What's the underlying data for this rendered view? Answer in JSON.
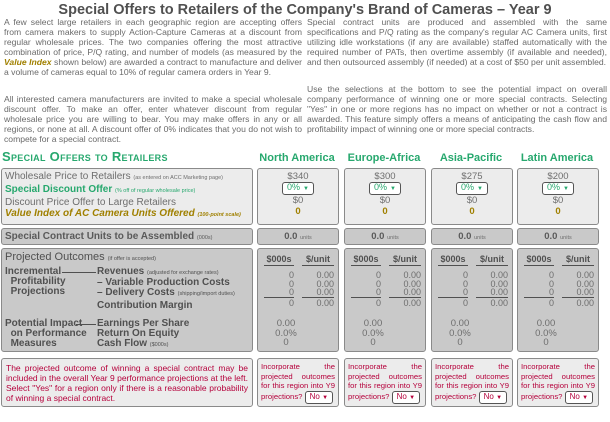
{
  "title": "Special Offers to Retailers of the Company's Brand of Cameras – Year 9",
  "intro": {
    "p1_a": "A few select large retailers in each geographic region are accepting offers from camera makers to supply Action-Capture Cameras at a discount from regular wholesale prices. The two companies offering the most attractive combination of price, P/Q rating, and number of models (as measured by the ",
    "p1_em": "Value Index",
    "p1_b": " shown below) are awarded a contract to manufacture and deliver a volume of cameras equal to 10% of regular camera orders in Year 9.",
    "p2": "All interested camera manufacturers are invited to make a special wholesale discount offer. To make an offer, enter whatever discount from regular wholesale price you are willing to bear. You may make offers in any or all regions, or none at all. A discount offer of 0% indicates that you do not wish to compete for a special contract.",
    "p3": "Special contract units are produced and assembled with the same specifications and P/Q rating as the company's regular AC Camera units, first utilizing idle workstations (if any are available) staffed automatically with the required number of PATs, then overtime assembly (if available and needed), and then outsourced assembly (if needed) at a cost of $50 per unit assembled.",
    "p4": "Use the selections at the bottom to see the potential impact on overall company performance of winning one or more special contracts. Selecting \"Yes\" in one or more regions has no impact on whether or not a contract is awarded. This feature simply offers a means of anticipating the cash flow and profitability impact of winning one or more special contracts."
  },
  "section_title": "Special Offers to Retailers",
  "labels": {
    "wholesale": "Wholesale Price to Retailers",
    "wholesale_note": "(as entered on ACC Marketing page)",
    "discount": "Special Discount Offer",
    "discount_note": "(% off of regular wholesale price)",
    "discount_price": "Discount Price Offer to Large Retailers",
    "vi_em": "Value Index",
    "vi_rest": " of AC Camera Units Offered",
    "vi_note": "(100-point scale)",
    "units": "Special Contract Units to be Assembled",
    "units_note": "(000s)",
    "proj": "Projected Outcomes",
    "proj_note": "(if offer is accepted)",
    "incr": "Incremental",
    "incr2": "Profitability",
    "incr3": "Projections",
    "rev": "Revenues",
    "rev_note": "(adjusted for exchange rates)",
    "vpc": "– Variable Production Costs",
    "dc": "– Delivery Costs",
    "dc_note": "(shipping/import duties)",
    "cm": "Contribution Margin",
    "pot": "Potential Impact",
    "pot2": "on Performance",
    "pot3": "Measures",
    "eps": "Earnings Per Share",
    "roe": "Return On Equity",
    "cf": "Cash Flow",
    "cf_note": "($000s)",
    "bottom_note": "The projected outcome of winning a special contract may be included in the overall Year 9 performance projections at the left. Select \"Yes\" for a region only if there is a reasonable probability of winning a special contract.",
    "col_k": "$000s",
    "col_u": "$/unit",
    "units_suffix": "units",
    "incorporate": "Incorporate the projected outcomes for this region into Y9 projections?"
  },
  "regions": [
    {
      "name": "North America",
      "price": "$340",
      "discount": "0%",
      "discount_price": "$0",
      "value_index": "0",
      "units": "0.0",
      "k": [
        "0",
        "0",
        "0",
        "0"
      ],
      "u": [
        "0.00",
        "0.00",
        "0.00",
        "0.00"
      ],
      "eps": "0.00",
      "roe": "0.0%",
      "cf": "0",
      "incorporate": "No"
    },
    {
      "name": "Europe-Africa",
      "price": "$300",
      "discount": "0%",
      "discount_price": "$0",
      "value_index": "0",
      "units": "0.0",
      "k": [
        "0",
        "0",
        "0",
        "0"
      ],
      "u": [
        "0.00",
        "0.00",
        "0.00",
        "0.00"
      ],
      "eps": "0.00",
      "roe": "0.0%",
      "cf": "0",
      "incorporate": "No"
    },
    {
      "name": "Asia-Pacific",
      "price": "$275",
      "discount": "0%",
      "discount_price": "$0",
      "value_index": "0",
      "units": "0.0",
      "k": [
        "0",
        "0",
        "0",
        "0"
      ],
      "u": [
        "0.00",
        "0.00",
        "0.00",
        "0.00"
      ],
      "eps": "0.00",
      "roe": "0.0%",
      "cf": "0",
      "incorporate": "No"
    },
    {
      "name": "Latin America",
      "price": "$200",
      "discount": "0%",
      "discount_price": "$0",
      "value_index": "0",
      "units": "0.0",
      "k": [
        "0",
        "0",
        "0",
        "0"
      ],
      "u": [
        "0.00",
        "0.00",
        "0.00",
        "0.00"
      ],
      "eps": "0.00",
      "roe": "0.0%",
      "cf": "0",
      "incorporate": "No"
    }
  ],
  "colors": {
    "green": "#27a86e",
    "gold": "#a08000",
    "red": "#b5003b",
    "panel": "#ececec",
    "outcome_panel": "#c9c9c9"
  }
}
